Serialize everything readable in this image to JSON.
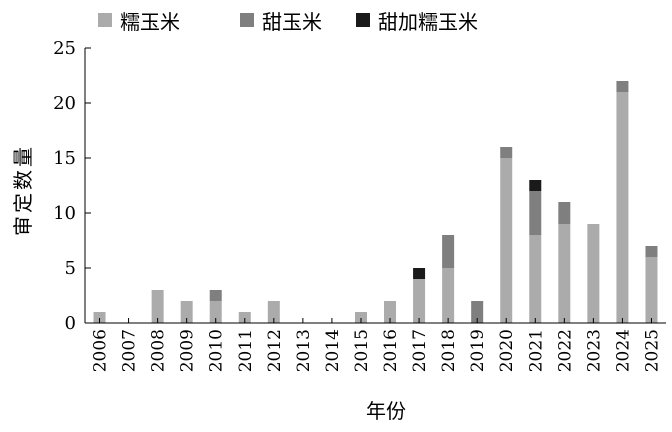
{
  "chart_data": {
    "type": "bar",
    "stacked": true,
    "categories": [
      "2006",
      "2007",
      "2008",
      "2009",
      "2010",
      "2011",
      "2012",
      "2013",
      "2014",
      "2015",
      "2016",
      "2017",
      "2018",
      "2019",
      "2020",
      "2021",
      "2022",
      "2023",
      "2024",
      "2025"
    ],
    "series": [
      {
        "name": "糯玉米",
        "color": "#ababab",
        "values": [
          1,
          0,
          3,
          2,
          2,
          1,
          2,
          0,
          0,
          1,
          2,
          4,
          5,
          0,
          15,
          8,
          9,
          9,
          21,
          6
        ]
      },
      {
        "name": "甜玉米",
        "color": "#7f7f7f",
        "values": [
          0,
          0,
          0,
          0,
          1,
          0,
          0,
          0,
          0,
          0,
          0,
          0,
          3,
          2,
          1,
          4,
          2,
          0,
          1,
          1
        ]
      },
      {
        "name": "甜加糯玉米",
        "color": "#1a1a1a",
        "values": [
          0,
          0,
          0,
          0,
          0,
          0,
          0,
          0,
          0,
          0,
          0,
          1,
          0,
          0,
          0,
          1,
          0,
          0,
          0,
          0
        ]
      }
    ],
    "xlabel": "年份",
    "ylabel": "审定数量",
    "ylim": [
      0,
      25
    ],
    "yticks": [
      0,
      5,
      10,
      15,
      20,
      25
    ],
    "legend_position": "top",
    "grid": false
  }
}
